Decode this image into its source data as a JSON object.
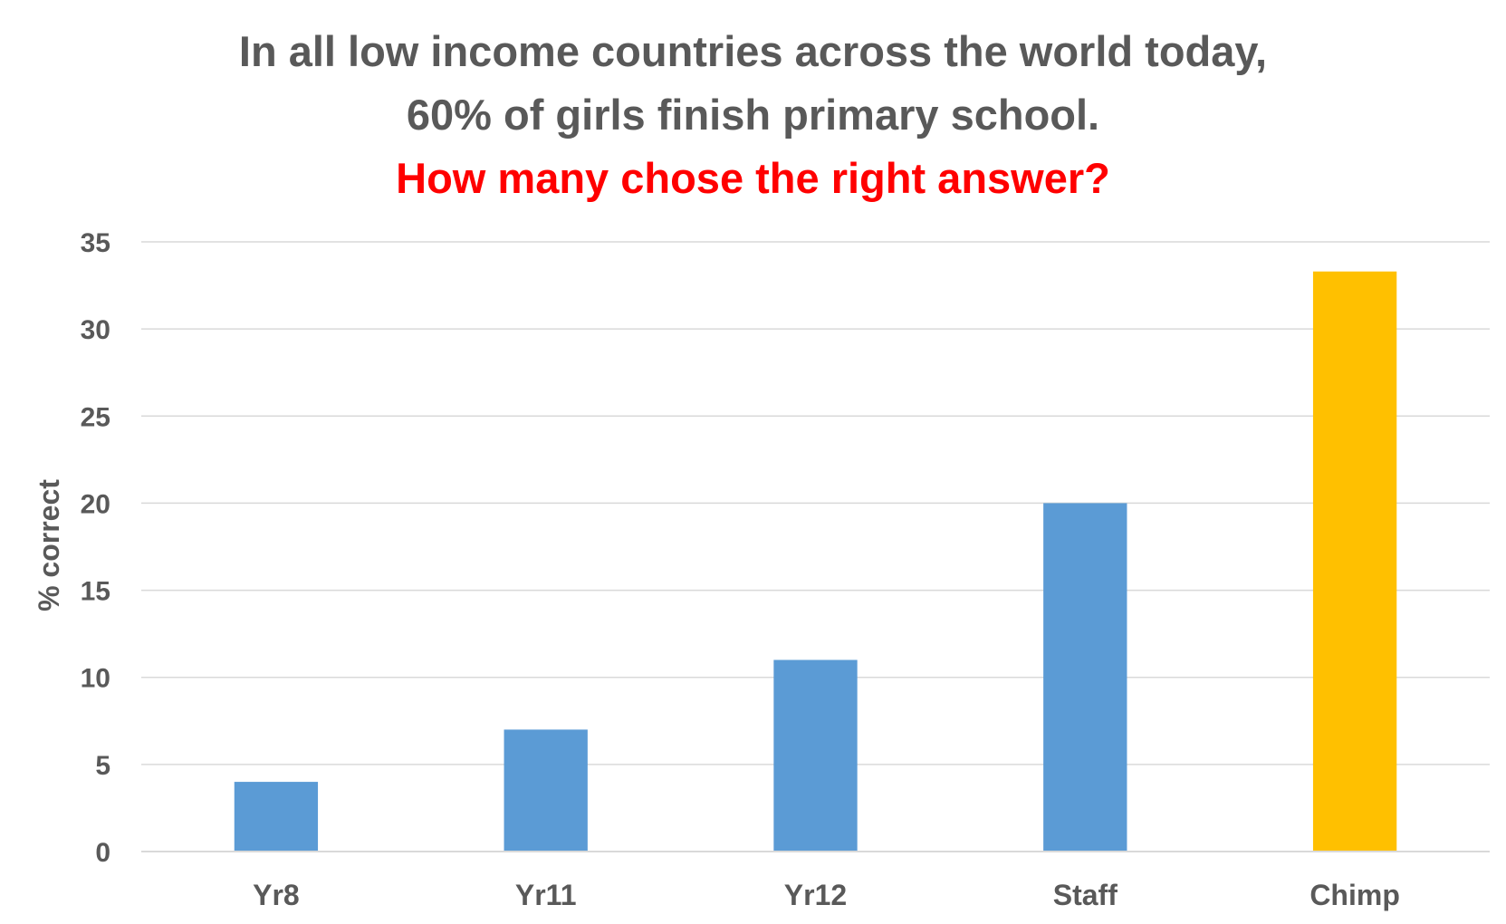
{
  "chart_data": {
    "type": "bar",
    "title_lines": [
      "In all low income countries across the world today,",
      "60% of girls finish primary school."
    ],
    "subtitle": "How many chose the right answer?",
    "categories": [
      "Yr8",
      "Yr11",
      "Yr12",
      "Staff",
      "Chimp"
    ],
    "values": [
      4,
      7,
      11,
      20,
      33.3
    ],
    "bar_colors": [
      "#5b9bd5",
      "#5b9bd5",
      "#5b9bd5",
      "#5b9bd5",
      "#ffc000"
    ],
    "xlabel": "",
    "ylabel": "% correct",
    "ylim": [
      0,
      35
    ],
    "yticks": [
      "0",
      "5",
      "10",
      "15",
      "20",
      "25",
      "30",
      "35"
    ],
    "grid": true,
    "legend": "none"
  }
}
